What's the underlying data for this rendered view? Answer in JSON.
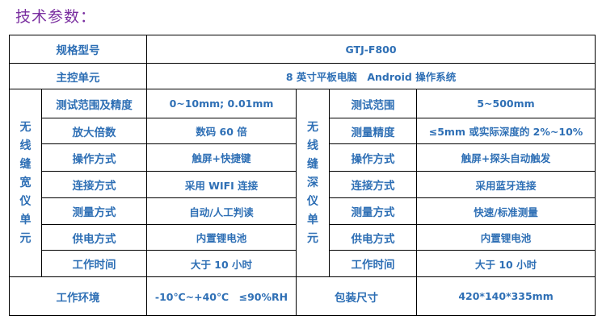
{
  "title": "技术参数：",
  "model": {
    "label": "规格型号",
    "value": "GTJ-F800"
  },
  "main_unit": {
    "label": "主控单元",
    "value": "8 英寸平板电脑　Android 操作系统"
  },
  "width_unit": {
    "name": "无线缝宽仪单元",
    "name_chars": [
      "无",
      "线",
      "缝",
      "宽",
      "仪",
      "单",
      "元"
    ],
    "rows": [
      {
        "label": "测试范围及精度",
        "value": "0~10mm; 0.01mm"
      },
      {
        "label": "放大倍数",
        "value": "数码 60 倍"
      },
      {
        "label": "操作方式",
        "value": "触屏+快捷键"
      },
      {
        "label": "连接方式",
        "value": "采用 WIFI 连接"
      },
      {
        "label": "测量方式",
        "value": "自动/人工判读"
      },
      {
        "label": "供电方式",
        "value": "内置锂电池"
      },
      {
        "label": "工作时间",
        "value": "大于 10 小时"
      }
    ]
  },
  "depth_unit": {
    "name": "无线缝深仪单元",
    "name_chars": [
      "无",
      "线",
      "缝",
      "深",
      "仪",
      "单",
      "元"
    ],
    "rows": [
      {
        "label": "测试范围",
        "value": "5~500mm"
      },
      {
        "label": "测量精度",
        "value": "≤5mm 或实际深度的 2%~10%"
      },
      {
        "label": "操作方式",
        "value": "触屏+探头自动触发"
      },
      {
        "label": "连接方式",
        "value": "采用蓝牙连接"
      },
      {
        "label": "测量方式",
        "value": "快速/标准测量"
      },
      {
        "label": "供电方式",
        "value": "内置锂电池"
      },
      {
        "label": "工作时间",
        "value": "大于 10 小时"
      }
    ]
  },
  "environment": {
    "label": "工作环境",
    "value": "-10℃~+40℃　≤90%RH"
  },
  "package": {
    "label": "包装尺寸",
    "value": "420*140*335mm"
  }
}
